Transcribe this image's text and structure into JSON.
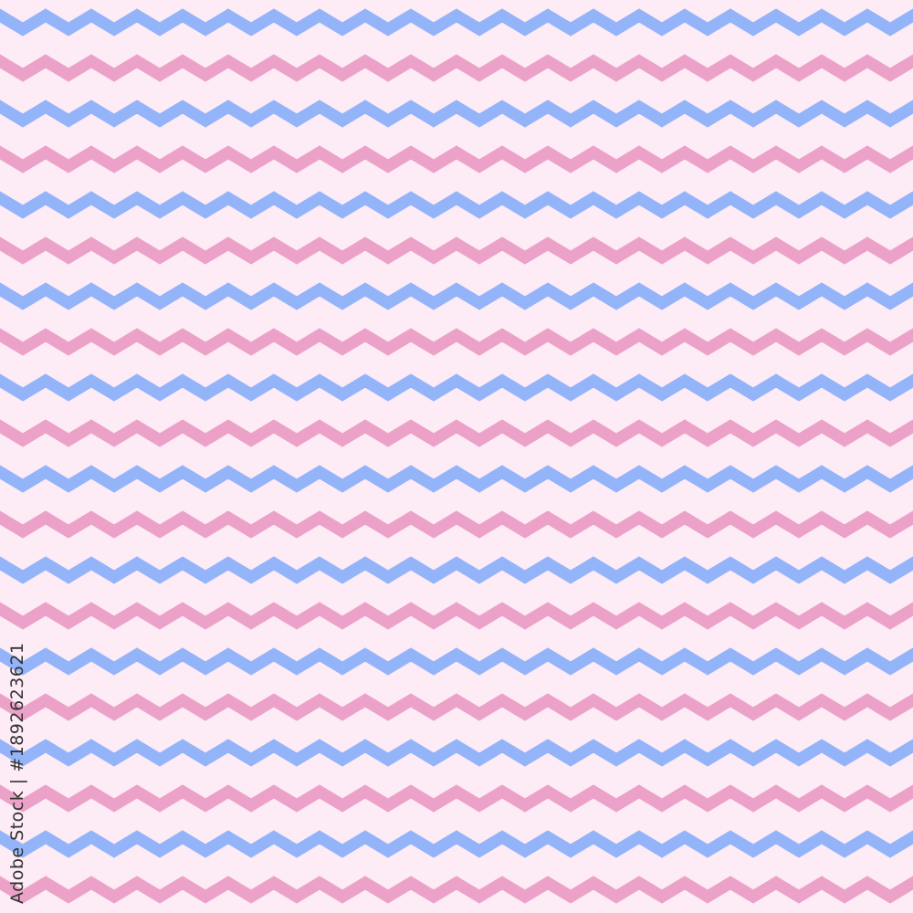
{
  "pattern": {
    "type": "horizontal zigzag stripes",
    "colors": {
      "background": "#fdebf6",
      "stripe_a": "#94b4fa",
      "stripe_b": "#eca2c8"
    }
  },
  "watermark": {
    "text": "Adobe Stock | #189262362​1"
  }
}
